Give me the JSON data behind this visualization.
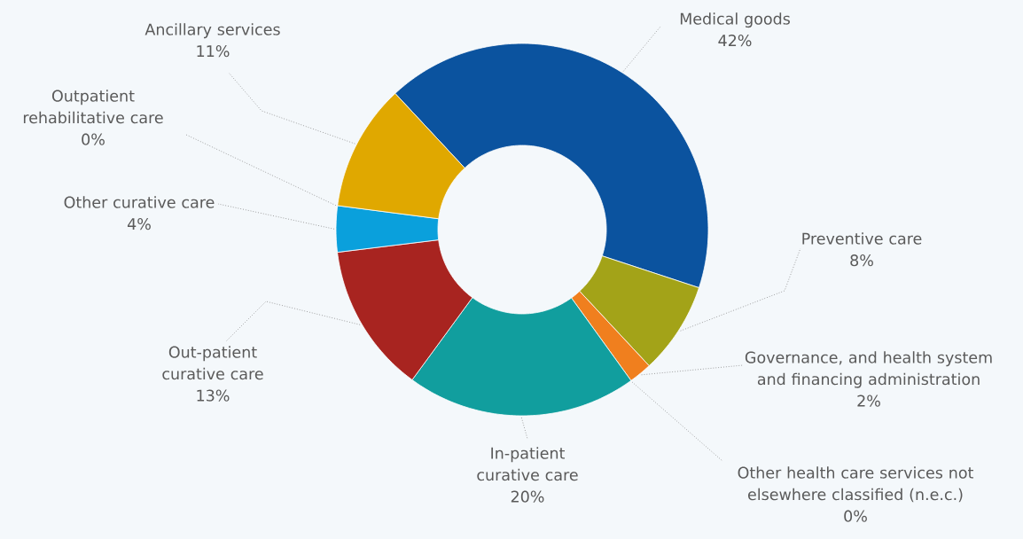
{
  "chart_data": {
    "type": "donut",
    "categories": [
      "Medical goods",
      "Preventive care",
      "Governance, and health system and financing administration",
      "Other health care services not elsewhere classified (n.e.c.)",
      "In-patient curative care",
      "Out-patient curative care",
      "Other curative care",
      "Outpatient rehabilitative care",
      "Ancillary services"
    ],
    "values": [
      42,
      8,
      2,
      0,
      20,
      13,
      4,
      0,
      11
    ],
    "value_labels": [
      "42%",
      "8%",
      "2%",
      "0%",
      "20%",
      "13%",
      "4%",
      "0%",
      "11%"
    ],
    "colors": [
      "#0b539f",
      "#a3a318",
      "#f07f1e",
      "#7f7f7f",
      "#119e9e",
      "#a82420",
      "#0aa0dc",
      "#5b9bd5",
      "#e0a800"
    ]
  }
}
